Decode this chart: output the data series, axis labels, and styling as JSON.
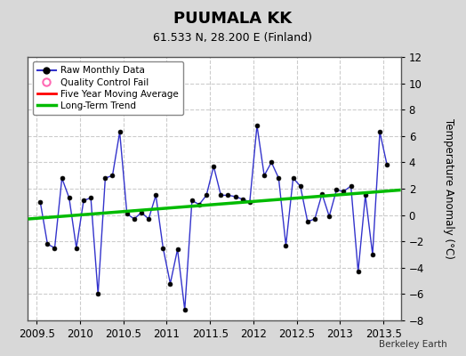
{
  "title": "PUUMALA KK",
  "subtitle": "61.533 N, 28.200 E (Finland)",
  "ylabel": "Temperature Anomaly (°C)",
  "watermark": "Berkeley Earth",
  "xlim": [
    2009.4,
    2013.7
  ],
  "ylim": [
    -8,
    12
  ],
  "yticks": [
    -8,
    -6,
    -4,
    -2,
    0,
    2,
    4,
    6,
    8,
    10,
    12
  ],
  "xticks": [
    2009.5,
    2010.0,
    2010.5,
    2011.0,
    2011.5,
    2012.0,
    2012.5,
    2013.0,
    2013.5
  ],
  "xticklabels": [
    "2009.5",
    "2010",
    "2010.5",
    "2011",
    "2011.5",
    "2012",
    "2012.5",
    "2013",
    "2013.5"
  ],
  "background_color": "#d8d8d8",
  "plot_bg_color": "#ffffff",
  "raw_x": [
    2009.5417,
    2009.625,
    2009.7083,
    2009.7917,
    2009.875,
    2009.9583,
    2010.0417,
    2010.125,
    2010.2083,
    2010.2917,
    2010.375,
    2010.4583,
    2010.5417,
    2010.625,
    2010.7083,
    2010.7917,
    2010.875,
    2010.9583,
    2011.0417,
    2011.125,
    2011.2083,
    2011.2917,
    2011.375,
    2011.4583,
    2011.5417,
    2011.625,
    2011.7083,
    2011.7917,
    2011.875,
    2011.9583,
    2012.0417,
    2012.125,
    2012.2083,
    2012.2917,
    2012.375,
    2012.4583,
    2012.5417,
    2012.625,
    2012.7083,
    2012.7917,
    2012.875,
    2012.9583,
    2013.0417,
    2013.125,
    2013.2083,
    2013.2917,
    2013.375,
    2013.4583,
    2013.5417
  ],
  "raw_y": [
    1.0,
    -2.2,
    -2.5,
    2.8,
    1.3,
    -2.5,
    1.1,
    1.3,
    -6.0,
    2.8,
    3.0,
    6.3,
    0.1,
    -0.3,
    0.2,
    -0.3,
    1.5,
    -2.5,
    -5.2,
    -2.6,
    -7.2,
    1.1,
    0.8,
    1.5,
    3.7,
    1.5,
    1.5,
    1.4,
    1.2,
    1.0,
    6.8,
    3.0,
    4.0,
    2.8,
    -2.3,
    2.8,
    2.2,
    -0.5,
    -0.3,
    1.6,
    -0.1,
    1.9,
    1.8,
    2.2,
    -4.3,
    1.5,
    -3.0,
    6.3,
    3.8
  ],
  "trend_x": [
    2009.4,
    2013.7
  ],
  "trend_y": [
    -0.3,
    1.9
  ],
  "raw_color": "#3333cc",
  "raw_marker_color": "#000000",
  "trend_color": "#00bb00",
  "mavg_color": "#ff0000",
  "grid_color": "#cccccc"
}
